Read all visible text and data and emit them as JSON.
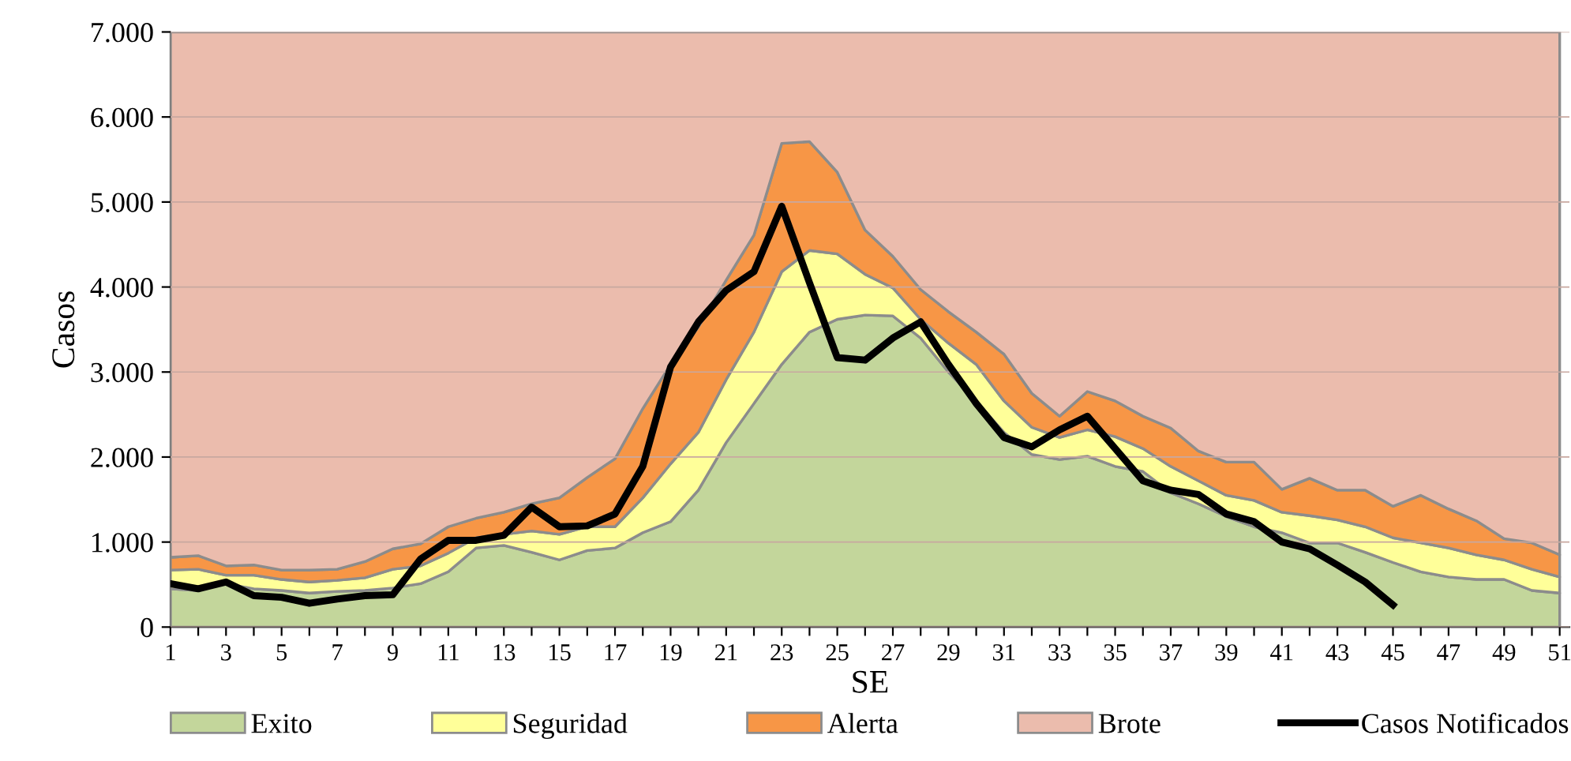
{
  "chart_data": {
    "type": "area",
    "stacked": true,
    "xlabel": "SE",
    "ylabel": "Casos",
    "x": [
      1,
      2,
      3,
      4,
      5,
      6,
      7,
      8,
      9,
      10,
      11,
      12,
      13,
      14,
      15,
      16,
      17,
      18,
      19,
      20,
      21,
      22,
      23,
      24,
      25,
      26,
      27,
      28,
      29,
      30,
      31,
      32,
      33,
      34,
      35,
      36,
      37,
      38,
      39,
      40,
      41,
      42,
      43,
      44,
      45,
      46,
      47,
      48,
      49,
      50,
      51
    ],
    "xlim": [
      1,
      51.35
    ],
    "xticks": [
      1,
      {
        "value": 2,
        "label": null
      },
      3,
      {
        "value": 4,
        "label": null
      },
      5,
      {
        "value": 6,
        "label": null
      },
      7,
      {
        "value": 8,
        "label": null
      },
      9,
      {
        "value": 10,
        "label": null
      },
      11,
      {
        "value": 12,
        "label": null
      },
      13,
      {
        "value": 14,
        "label": null
      },
      15,
      {
        "value": 16,
        "label": null
      },
      17,
      {
        "value": 18,
        "label": null
      },
      19,
      {
        "value": 20,
        "label": null
      },
      21,
      {
        "value": 22,
        "label": null
      },
      23,
      {
        "value": 24,
        "label": null
      },
      25,
      {
        "value": 26,
        "label": null
      },
      27,
      {
        "value": 28,
        "label": null
      },
      29,
      {
        "value": 30,
        "label": null
      },
      31,
      {
        "value": 32,
        "label": null
      },
      33,
      {
        "value": 34,
        "label": null
      },
      35,
      {
        "value": 36,
        "label": null
      },
      37,
      {
        "value": 38,
        "label": null
      },
      39,
      {
        "value": 40,
        "label": null
      },
      41,
      {
        "value": 42,
        "label": null
      },
      43,
      {
        "value": 44,
        "label": null
      },
      45,
      {
        "value": 46,
        "label": null
      },
      47,
      {
        "value": 48,
        "label": null
      },
      49,
      {
        "value": 50,
        "label": null
      },
      51
    ],
    "ylim": [
      0,
      7000
    ],
    "yticks": [
      0,
      {
        "value": 1000,
        "label": "1.000"
      },
      {
        "value": 2000,
        "label": "2.000"
      },
      {
        "value": 3000,
        "label": "3.000"
      },
      {
        "value": 4000,
        "label": "4.000"
      },
      {
        "value": 5000,
        "label": "5.000"
      },
      {
        "value": 6000,
        "label": "6.000"
      },
      {
        "value": 7000,
        "label": "7.000"
      }
    ],
    "grid": "y",
    "legend": "bottom",
    "series": [
      {
        "name": "Exito",
        "color": "#c3d69b",
        "values": [
          450,
          430,
          510,
          450,
          430,
          400,
          420,
          430,
          460,
          510,
          650,
          930,
          960,
          880,
          790,
          900,
          930,
          1110,
          1240,
          1610,
          2170,
          2630,
          3090,
          3470,
          3620,
          3670,
          3660,
          3400,
          3000,
          2660,
          2290,
          2030,
          1970,
          2010,
          1890,
          1830,
          1580,
          1450,
          1300,
          1180,
          1110,
          990,
          990,
          880,
          760,
          650,
          590,
          560,
          560,
          430,
          400
        ]
      },
      {
        "name": "Seguridad",
        "color": "#ffff99",
        "values": [
          220,
          250,
          100,
          160,
          130,
          130,
          130,
          150,
          220,
          210,
          220,
          120,
          130,
          250,
          300,
          280,
          250,
          410,
          680,
          680,
          740,
          840,
          1090,
          960,
          770,
          480,
          330,
          220,
          340,
          430,
          370,
          320,
          260,
          310,
          350,
          270,
          310,
          270,
          250,
          310,
          240,
          320,
          270,
          300,
          290,
          340,
          340,
          290,
          230,
          250,
          190
        ]
      },
      {
        "name": "Alerta",
        "color": "#f79646",
        "values": [
          150,
          160,
          110,
          120,
          110,
          140,
          130,
          190,
          240,
          260,
          310,
          230,
          260,
          320,
          430,
          580,
          800,
          1050,
          1170,
          1240,
          1170,
          1140,
          1510,
          1280,
          960,
          520,
          370,
          350,
          370,
          380,
          550,
          400,
          250,
          450,
          420,
          380,
          450,
          350,
          390,
          450,
          270,
          440,
          350,
          430,
          370,
          560,
          460,
          400,
          250,
          310,
          260
        ]
      },
      {
        "name": "Brote",
        "color": "#ebbcad",
        "values": [
          6180,
          6160,
          6280,
          6270,
          6330,
          6330,
          6320,
          6230,
          6080,
          6020,
          5820,
          5720,
          5650,
          5550,
          5480,
          5240,
          5020,
          4430,
          3910,
          3470,
          2920,
          2390,
          1310,
          1290,
          1650,
          2330,
          2640,
          3030,
          3290,
          3530,
          3790,
          4250,
          4520,
          4230,
          4340,
          4520,
          4660,
          4930,
          5060,
          5060,
          5380,
          5250,
          5390,
          5390,
          5580,
          5450,
          5610,
          5750,
          5960,
          6010,
          6150
        ]
      },
      {
        "name": "Casos Notificados",
        "type": "line",
        "color": "#000000",
        "x": [
          1,
          2,
          3,
          4,
          5,
          6,
          7,
          8,
          9,
          10,
          11,
          12,
          13,
          14,
          15,
          16,
          17,
          18,
          19,
          20,
          21,
          22,
          23,
          24,
          25,
          26,
          27,
          28,
          29,
          30,
          31,
          32,
          33,
          34,
          35,
          36,
          37,
          38,
          39,
          40,
          41,
          42,
          43,
          44,
          45
        ],
        "values": [
          510,
          450,
          530,
          370,
          350,
          280,
          330,
          370,
          380,
          800,
          1020,
          1020,
          1080,
          1410,
          1180,
          1190,
          1330,
          1890,
          3060,
          3590,
          3960,
          4180,
          4950,
          4050,
          3170,
          3140,
          3400,
          3590,
          3090,
          2630,
          2230,
          2120,
          2320,
          2480,
          2100,
          1720,
          1610,
          1560,
          1330,
          1240,
          1000,
          920,
          730,
          530,
          260
        ]
      }
    ]
  }
}
